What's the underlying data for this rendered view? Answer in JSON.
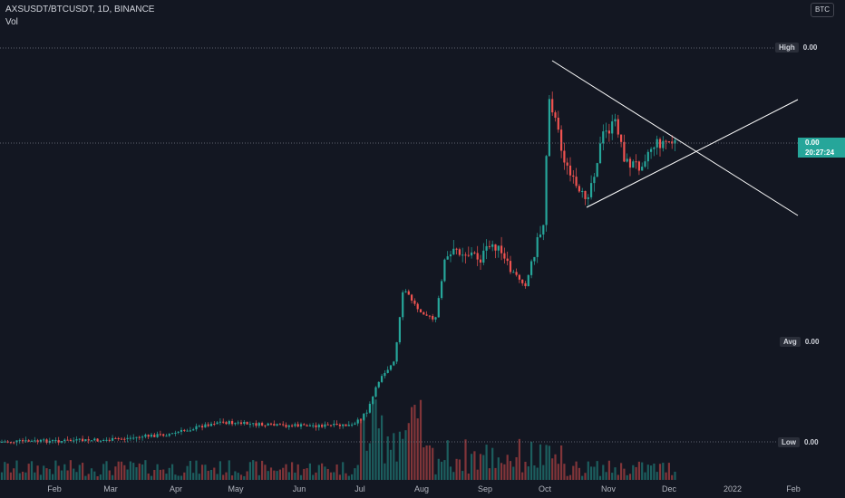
{
  "legend": {
    "symbol_line": "AXSUSDT/BTCUSDT, 1D, BINANCE",
    "volume_label": "Vol"
  },
  "currency_button": "BTC",
  "price_labels": {
    "high": {
      "key": "High",
      "value": "0.00"
    },
    "avg": {
      "key": "Avg",
      "value": "0.00"
    },
    "low": {
      "key": "Low",
      "value": "0.00"
    },
    "current": {
      "value": "0.00",
      "countdown": "20:27:24"
    }
  },
  "time_axis": [
    "Feb",
    "Mar",
    "Apr",
    "May",
    "Jun",
    "Jul",
    "Aug",
    "Sep",
    "Oct",
    "Nov",
    "Dec",
    "2022",
    "Feb"
  ],
  "colors": {
    "background": "#131722",
    "up": "#26a69a",
    "down": "#ef5350",
    "trendline": "#ffffff",
    "dotted_line": "#787b86"
  },
  "chart_data": {
    "type": "candlestick",
    "title": "AXSUSDT/BTCUSDT, 1D, BINANCE",
    "x_axis_ticks": [
      "Feb",
      "Mar",
      "Apr",
      "May",
      "Jun",
      "Jul",
      "Aug",
      "Sep",
      "Oct",
      "Nov",
      "Dec",
      "2022",
      "Feb"
    ],
    "series": [
      {
        "name": "AXSUSDT/BTCUSDT",
        "points": [
          {
            "date": "2021-01-20",
            "close": 0.0
          },
          {
            "date": "2021-02-15",
            "close": 0.0
          },
          {
            "date": "2021-03-15",
            "close": 0.0
          },
          {
            "date": "2021-04-15",
            "close": 0.0
          },
          {
            "date": "2021-05-15",
            "close": 0.0
          },
          {
            "date": "2021-06-15",
            "close": 0.0
          },
          {
            "date": "2021-07-15",
            "close": 0.0
          },
          {
            "date": "2021-08-15",
            "close": 0.0
          },
          {
            "date": "2021-09-15",
            "close": 0.0
          },
          {
            "date": "2021-10-15",
            "close": 0.0
          },
          {
            "date": "2021-11-15",
            "close": 0.0
          },
          {
            "date": "2021-12-06",
            "close": 0.0
          }
        ]
      }
    ],
    "y_axis_labels": {
      "High": "0.00",
      "Avg": "0.00",
      "Low": "0.00",
      "Current": "0.00"
    },
    "legend": "none",
    "grid": false
  }
}
